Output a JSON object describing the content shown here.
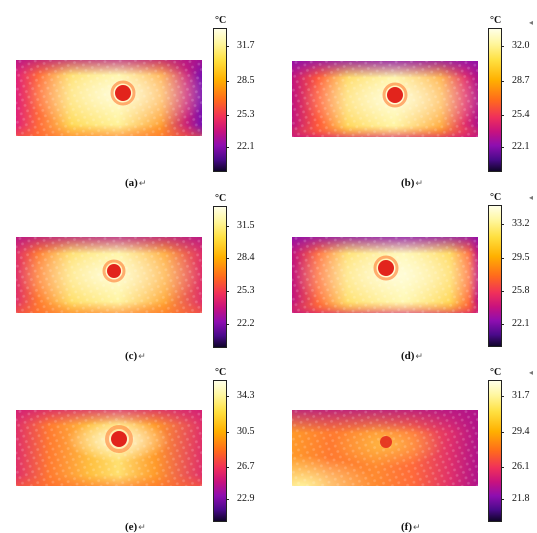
{
  "unit_label": "°C",
  "return_glyph": "↵",
  "panels": [
    {
      "caption": "(a)",
      "ticks": [
        "31.7",
        "28.5",
        "25.3",
        "22.1"
      ]
    },
    {
      "caption": "(b)",
      "ticks": [
        "32.0",
        "28.7",
        "25.4",
        "22.1"
      ]
    },
    {
      "caption": "(c)",
      "ticks": [
        "31.5",
        "28.4",
        "25.3",
        "22.2"
      ]
    },
    {
      "caption": "(d)",
      "ticks": [
        "33.2",
        "29.5",
        "25.8",
        "22.1"
      ]
    },
    {
      "caption": "(e)",
      "ticks": [
        "34.3",
        "30.5",
        "26.7",
        "22.9"
      ]
    },
    {
      "caption": "(f)",
      "ticks": [
        "31.7",
        "29.4",
        "26.1",
        "21.8"
      ]
    }
  ],
  "colors": {
    "hot_spot": "#e2241c",
    "hot": "#ffe86a",
    "warm": "#ff8a1c",
    "cool_edge": "#9a1ab0"
  }
}
